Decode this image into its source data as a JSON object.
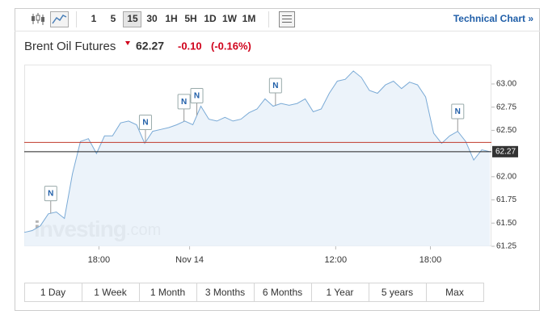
{
  "toolbar": {
    "intervals": [
      "1",
      "5",
      "15",
      "30",
      "1H",
      "5H",
      "1D",
      "1W",
      "1M"
    ],
    "selected": "15",
    "link": "Technical Chart »"
  },
  "header": {
    "title": "Brent Oil Futures",
    "price": 62.27,
    "change": "-0.10",
    "change_pct": "(-0.16%)"
  },
  "chart_data": {
    "type": "area",
    "series": [
      {
        "name": "Brent Oil Futures",
        "color": "#7aaad6",
        "values": [
          61.4,
          61.42,
          61.47,
          61.6,
          61.62,
          61.55,
          62.03,
          62.38,
          62.41,
          62.25,
          62.44,
          62.44,
          62.58,
          62.6,
          62.56,
          62.36,
          62.49,
          62.51,
          62.53,
          62.56,
          62.6,
          62.56,
          62.76,
          62.62,
          62.6,
          62.64,
          62.6,
          62.62,
          62.69,
          62.73,
          62.84,
          62.76,
          62.79,
          62.77,
          62.79,
          62.84,
          62.7,
          62.73,
          62.9,
          63.03,
          63.05,
          63.14,
          63.07,
          62.93,
          62.9,
          62.99,
          63.03,
          62.95,
          63.02,
          62.99,
          62.86,
          62.47,
          62.36,
          62.44,
          62.49,
          62.38,
          62.18,
          62.29,
          62.27
        ]
      }
    ],
    "fill_color": "#e9f1f9",
    "xlim": [
      0,
      58
    ],
    "xticks": [
      {
        "value": 9.3,
        "label": "18:00"
      },
      {
        "value": 20.6,
        "label": "Nov 14"
      },
      {
        "value": 38.8,
        "label": "12:00"
      },
      {
        "value": 50.6,
        "label": "18:00"
      }
    ],
    "ylim": [
      61.25,
      63.2
    ],
    "yticks": [
      61.25,
      {
        "value": 61.5,
        "label": "61.50"
      },
      61.75,
      {
        "value": 62,
        "label": "62.00"
      },
      {
        "value": 62.5,
        "label": "62.50"
      },
      62.75,
      {
        "value": 63,
        "label": "63.00"
      }
    ],
    "prev_close": 62.37,
    "prev_close_color": "#c0392b",
    "news_markers": [
      {
        "label": "N",
        "x": 3.3
      },
      {
        "label": "N",
        "x": 15.1
      },
      {
        "label": "N",
        "x": 19.9
      },
      {
        "label": "N",
        "x": 21.5
      },
      {
        "label": "N",
        "x": 31.3
      },
      {
        "label": "N",
        "x": 54
      }
    ],
    "watermark": {
      "brand": "investing",
      "suffix": ".com"
    }
  },
  "ranges": [
    "1 Day",
    "1 Week",
    "1 Month",
    "3 Months",
    "6 Months",
    "1 Year",
    "5 years",
    "Max"
  ]
}
